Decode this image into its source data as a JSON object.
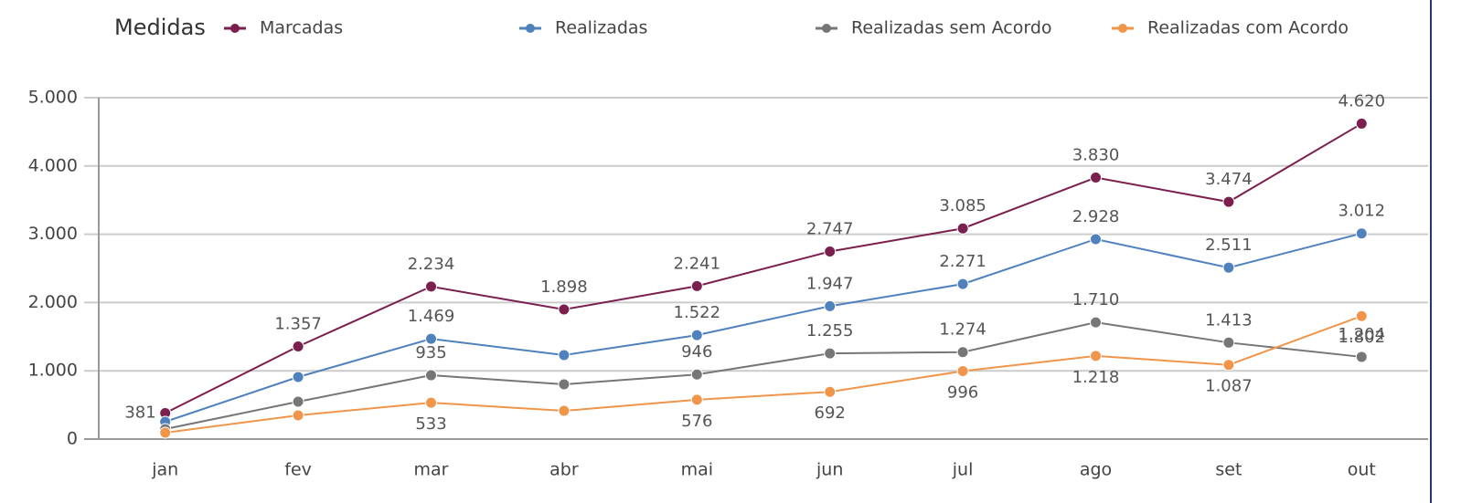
{
  "chart_data": {
    "type": "line",
    "legend_title": "Medidas",
    "categories": [
      "jan",
      "fev",
      "mar",
      "abr",
      "mai",
      "jun",
      "jul",
      "ago",
      "set",
      "out"
    ],
    "series": [
      {
        "name": "Marcadas",
        "color": "#7b1f4f",
        "values": [
          381,
          1357,
          2234,
          1898,
          2241,
          2747,
          3085,
          3830,
          3474,
          4620
        ],
        "value_labels": [
          "381",
          "1.357",
          "2.234",
          "1.898",
          "2.241",
          "2.747",
          "3.085",
          "3.830",
          "3.474",
          "4.620"
        ]
      },
      {
        "name": "Realizadas",
        "color": "#4f81bd",
        "values": [
          254,
          909,
          1469,
          1230,
          1522,
          1947,
          2271,
          2928,
          2511,
          3012
        ],
        "value_labels": [
          null,
          null,
          "1.469",
          null,
          "1.522",
          "1.947",
          "2.271",
          "2.928",
          "2.511",
          "3.012"
        ]
      },
      {
        "name": "Realizadas sem Acordo",
        "color": "#767676",
        "values": [
          147,
          548,
          935,
          802,
          946,
          1255,
          1274,
          1710,
          1413,
          1204
        ],
        "value_labels": [
          null,
          null,
          "935",
          null,
          "946",
          "1.255",
          "1.274",
          "1.710",
          "1.413",
          "1.204"
        ]
      },
      {
        "name": "Realizadas com Acordo",
        "color": "#f0954a",
        "values": [
          94,
          348,
          533,
          414,
          576,
          692,
          996,
          1218,
          1087,
          1802
        ],
        "value_labels": [
          null,
          null,
          "533",
          null,
          "576",
          "692",
          "996",
          "1.218",
          "1.087",
          "1.802"
        ]
      }
    ],
    "ylim": [
      0,
      5000
    ],
    "yticks": [
      0,
      {
        "value": 1000,
        "label": "1.000"
      },
      {
        "value": 2000,
        "label": "2.000"
      },
      {
        "value": 3000,
        "label": "3.000"
      },
      {
        "value": 4000,
        "label": "4.000"
      },
      {
        "value": 5000,
        "label": "5.000"
      }
    ],
    "grid": true
  }
}
